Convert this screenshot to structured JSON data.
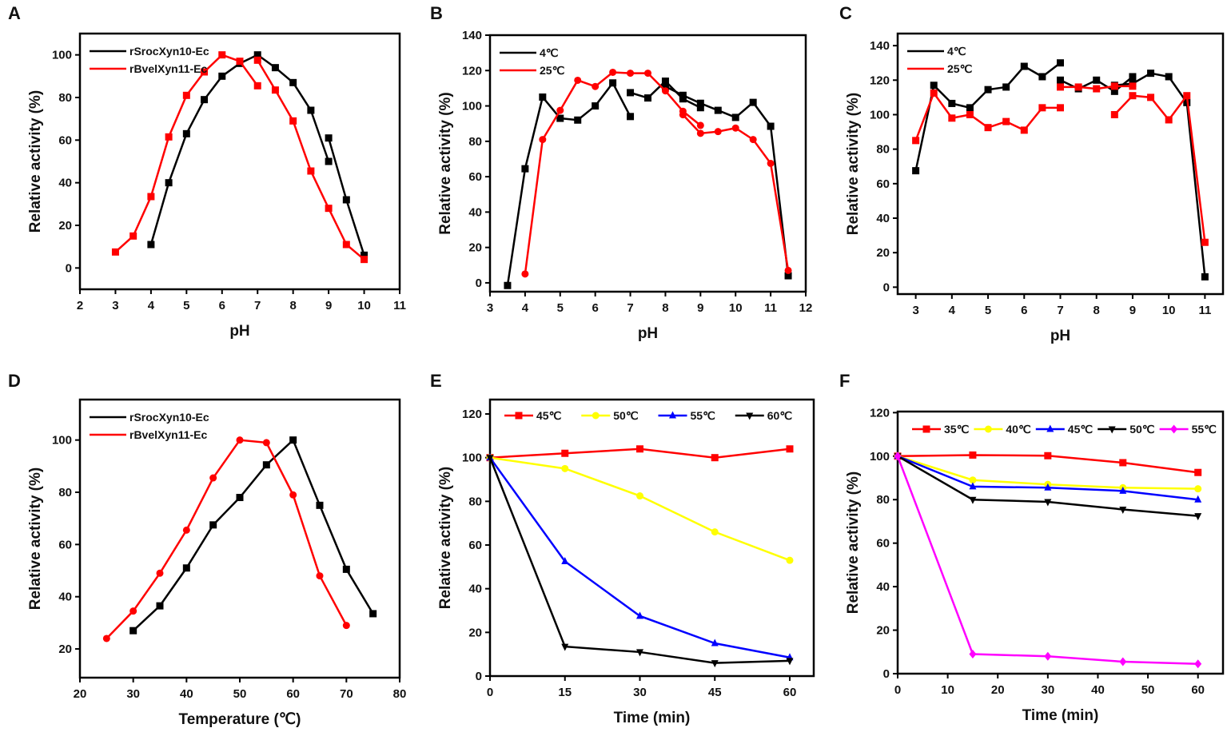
{
  "chart_data": [
    {
      "panel": "A",
      "type": "line",
      "xlabel": "pH",
      "ylabel": "Relative activity (%)",
      "xlim": [
        2,
        11
      ],
      "ylim": [
        -10,
        110
      ],
      "xticks": [
        2,
        3,
        4,
        5,
        6,
        7,
        8,
        9,
        10,
        11
      ],
      "yticks": [
        0,
        20,
        40,
        60,
        80,
        100
      ],
      "legend": "top-left",
      "series": [
        {
          "name": "rSrocXyn10-Ec",
          "color": "#000000",
          "marker": "square",
          "segments": [
            [
              [
                4,
                11
              ],
              [
                4.5,
                40
              ],
              [
                5,
                63
              ],
              [
                5.5,
                79
              ],
              [
                6,
                90
              ],
              [
                6.5,
                96
              ],
              [
                7,
                100
              ],
              [
                7.5,
                94
              ],
              [
                8,
                87
              ],
              [
                8.5,
                74
              ],
              [
                9,
                50
              ]
            ],
            [
              [
                9,
                61
              ],
              [
                9.5,
                32
              ],
              [
                10,
                6
              ]
            ]
          ]
        },
        {
          "name": "rBvelXyn11-Ec",
          "color": "#ff0000",
          "marker": "square",
          "segments": [
            [
              [
                3,
                7.5
              ],
              [
                3.5,
                15
              ],
              [
                4,
                33.5
              ],
              [
                4.5,
                61.5
              ],
              [
                5,
                81
              ],
              [
                5.5,
                92
              ],
              [
                6,
                100
              ],
              [
                6.5,
                97
              ],
              [
                7,
                85.5
              ]
            ],
            [
              [
                7,
                97.5
              ],
              [
                7.5,
                83.5
              ],
              [
                8,
                69
              ],
              [
                8.5,
                45.5
              ],
              [
                9,
                28
              ],
              [
                9.5,
                11
              ],
              [
                10,
                4
              ]
            ]
          ]
        }
      ]
    },
    {
      "panel": "B",
      "type": "line",
      "xlabel": "pH",
      "ylabel": "Relative activity (%)",
      "xlim": [
        3,
        12
      ],
      "ylim": [
        -5,
        140
      ],
      "xticks": [
        3,
        4,
        5,
        6,
        7,
        8,
        9,
        10,
        11,
        12
      ],
      "yticks": [
        0,
        20,
        40,
        60,
        80,
        100,
        120,
        140
      ],
      "legend": "top-left",
      "series": [
        {
          "name": "4℃",
          "color": "#000000",
          "marker": "square",
          "segments": [
            [
              [
                3.5,
                -1.5
              ],
              [
                4,
                64.5
              ],
              [
                4.5,
                105
              ],
              [
                5,
                93
              ],
              [
                5.5,
                92
              ],
              [
                6,
                100
              ],
              [
                6.5,
                113
              ],
              [
                7,
                94
              ]
            ],
            [
              [
                7,
                107.5
              ],
              [
                7.5,
                104.5
              ],
              [
                8,
                114
              ],
              [
                8.5,
                104
              ],
              [
                9,
                99
              ]
            ],
            [
              [
                8,
                111
              ],
              [
                8.5,
                106
              ],
              [
                9,
                101.5
              ],
              [
                9.5,
                97.5
              ],
              [
                10,
                93.5
              ],
              [
                10.5,
                102
              ],
              [
                11,
                88.5
              ],
              [
                11.5,
                4
              ]
            ]
          ]
        },
        {
          "name": "25℃",
          "color": "#ff0000",
          "marker": "circle",
          "segments": [
            [
              [
                4,
                5
              ],
              [
                4.5,
                81
              ],
              [
                5,
                97.5
              ],
              [
                5.5,
                114.5
              ],
              [
                6,
                111
              ],
              [
                6.5,
                119
              ],
              [
                7,
                118.5
              ],
              [
                7.5,
                118.5
              ],
              [
                8,
                108.5
              ],
              [
                8.5,
                97
              ],
              [
                9,
                89
              ]
            ],
            [
              [
                8.5,
                95
              ],
              [
                9,
                84.5
              ],
              [
                9.5,
                85.5
              ],
              [
                10,
                87.5
              ],
              [
                10.5,
                81
              ],
              [
                11,
                67.5
              ],
              [
                11.5,
                7
              ]
            ]
          ]
        }
      ]
    },
    {
      "panel": "C",
      "type": "line",
      "xlabel": "pH",
      "ylabel": "Relative activity (%)",
      "xlim": [
        2.5,
        11.5
      ],
      "ylim": [
        -4,
        147
      ],
      "xticks": [
        3,
        4,
        5,
        6,
        7,
        8,
        9,
        10,
        11
      ],
      "yticks": [
        0,
        20,
        40,
        60,
        80,
        100,
        120,
        140
      ],
      "legend": "top-left",
      "series": [
        {
          "name": "4℃",
          "color": "#000000",
          "marker": "square",
          "segments": [
            [
              [
                3,
                67.5
              ],
              [
                3.5,
                117
              ],
              [
                4,
                106.5
              ],
              [
                4.5,
                104
              ],
              [
                5,
                114.5
              ],
              [
                5.5,
                116
              ],
              [
                6,
                128
              ],
              [
                6.5,
                122
              ],
              [
                7,
                130
              ]
            ],
            [
              [
                7,
                120
              ],
              [
                7.5,
                115
              ],
              [
                8,
                120
              ],
              [
                8.5,
                113.5
              ],
              [
                9,
                122
              ]
            ],
            [
              [
                8.5,
                117
              ],
              [
                9,
                118
              ],
              [
                9.5,
                124
              ],
              [
                10,
                122
              ],
              [
                10.5,
                107
              ],
              [
                11,
                6
              ]
            ]
          ]
        },
        {
          "name": "25℃",
          "color": "#ff0000",
          "marker": "square",
          "segments": [
            [
              [
                3,
                85
              ],
              [
                3.5,
                112.5
              ],
              [
                4,
                98
              ],
              [
                4.5,
                100
              ],
              [
                5,
                92.5
              ],
              [
                5.5,
                96
              ],
              [
                6,
                91
              ],
              [
                6.5,
                104
              ],
              [
                7,
                104
              ]
            ],
            [
              [
                7,
                116
              ],
              [
                7.5,
                116
              ],
              [
                8,
                115
              ],
              [
                8.5,
                116.5
              ],
              [
                9,
                116.5
              ]
            ],
            [
              [
                8.5,
                100
              ],
              [
                9,
                111
              ],
              [
                9.5,
                110
              ],
              [
                10,
                97
              ],
              [
                10.5,
                111
              ],
              [
                11,
                26
              ]
            ]
          ]
        }
      ]
    },
    {
      "panel": "D",
      "type": "line",
      "xlabel": "Temperature (℃)",
      "ylabel": "Relative activity (%)",
      "xlim": [
        20,
        80
      ],
      "ylim": [
        9,
        115.5
      ],
      "xticks": [
        20,
        30,
        40,
        50,
        60,
        70,
        80
      ],
      "yticks": [
        20,
        40,
        60,
        80,
        100
      ],
      "legend": "top-left",
      "series": [
        {
          "name": "rSrocXyn10-Ec",
          "color": "#000000",
          "marker": "square",
          "segments": [
            [
              [
                30,
                27
              ],
              [
                35,
                36.5
              ],
              [
                40,
                51
              ],
              [
                45,
                67.5
              ],
              [
                50,
                78
              ],
              [
                55,
                90.5
              ],
              [
                60,
                100
              ],
              [
                65,
                75
              ],
              [
                70,
                50.5
              ],
              [
                75,
                33.5
              ]
            ]
          ]
        },
        {
          "name": "rBvelXyn11-Ec",
          "color": "#ff0000",
          "marker": "circle",
          "segments": [
            [
              [
                25,
                24
              ],
              [
                30,
                34.5
              ],
              [
                35,
                49
              ],
              [
                40,
                65.5
              ],
              [
                45,
                85.5
              ],
              [
                50,
                100
              ],
              [
                55,
                99
              ],
              [
                60,
                79
              ],
              [
                65,
                48
              ],
              [
                70,
                29
              ]
            ]
          ]
        }
      ]
    },
    {
      "panel": "E",
      "type": "line",
      "xlabel": "Time (min)",
      "ylabel": "Relative activity (%)",
      "xlim": [
        0,
        64.8
      ],
      "ylim": [
        0,
        126.6
      ],
      "xticks": [
        0,
        15,
        30,
        45,
        60
      ],
      "yticks": [
        0,
        20,
        40,
        60,
        80,
        100,
        120
      ],
      "legend": "top-row",
      "series": [
        {
          "name": "45℃",
          "color": "#ff0000",
          "marker": "square",
          "segments": [
            [
              [
                0,
                100
              ],
              [
                15,
                102
              ],
              [
                30,
                104
              ],
              [
                45,
                100
              ],
              [
                60,
                104
              ]
            ]
          ]
        },
        {
          "name": "50℃",
          "color": "#ffff00",
          "marker": "circle",
          "segments": [
            [
              [
                0,
                100
              ],
              [
                15,
                95
              ],
              [
                30,
                82.5
              ],
              [
                45,
                66
              ],
              [
                60,
                53
              ]
            ]
          ]
        },
        {
          "name": "55℃",
          "color": "#0000ff",
          "marker": "triangle",
          "segments": [
            [
              [
                0,
                100
              ],
              [
                15,
                52.5
              ],
              [
                30,
                27.5
              ],
              [
                45,
                15
              ],
              [
                60,
                8.5
              ]
            ]
          ]
        },
        {
          "name": "60℃",
          "color": "#000000",
          "marker": "triangle-down",
          "segments": [
            [
              [
                0,
                100
              ],
              [
                15,
                13.5
              ],
              [
                30,
                11
              ],
              [
                45,
                6
              ],
              [
                60,
                7
              ]
            ]
          ]
        }
      ]
    },
    {
      "panel": "F",
      "type": "line",
      "xlabel": "Time (min)",
      "ylabel": "Relative activity (%)",
      "xlim": [
        0,
        65
      ],
      "ylim": [
        0,
        120.5
      ],
      "xticks": [
        0,
        10,
        20,
        30,
        40,
        50,
        60
      ],
      "yticks": [
        0,
        20,
        40,
        60,
        80,
        100,
        120
      ],
      "legend": "top-row",
      "series": [
        {
          "name": "35℃",
          "color": "#ff0000",
          "marker": "square",
          "segments": [
            [
              [
                0,
                100
              ],
              [
                15,
                100.5
              ],
              [
                30,
                100.2
              ],
              [
                45,
                97
              ],
              [
                60,
                92.5
              ]
            ]
          ]
        },
        {
          "name": "40℃",
          "color": "#ffff00",
          "marker": "circle",
          "segments": [
            [
              [
                0,
                100
              ],
              [
                15,
                89
              ],
              [
                30,
                87
              ],
              [
                45,
                85.5
              ],
              [
                60,
                85
              ]
            ]
          ]
        },
        {
          "name": "45℃",
          "color": "#0000ff",
          "marker": "triangle",
          "segments": [
            [
              [
                0,
                100
              ],
              [
                15,
                86
              ],
              [
                30,
                85.5
              ],
              [
                45,
                84
              ],
              [
                60,
                80
              ]
            ]
          ]
        },
        {
          "name": "50℃",
          "color": "#000000",
          "marker": "triangle-down",
          "segments": [
            [
              [
                0,
                100
              ],
              [
                15,
                80
              ],
              [
                30,
                79
              ],
              [
                45,
                75.5
              ],
              [
                60,
                72.5
              ]
            ]
          ]
        },
        {
          "name": "55℃",
          "color": "#ff00ff",
          "marker": "diamond",
          "segments": [
            [
              [
                0,
                100
              ],
              [
                15,
                9
              ],
              [
                30,
                8
              ],
              [
                45,
                5.5
              ],
              [
                60,
                4.5
              ]
            ]
          ]
        }
      ]
    }
  ]
}
